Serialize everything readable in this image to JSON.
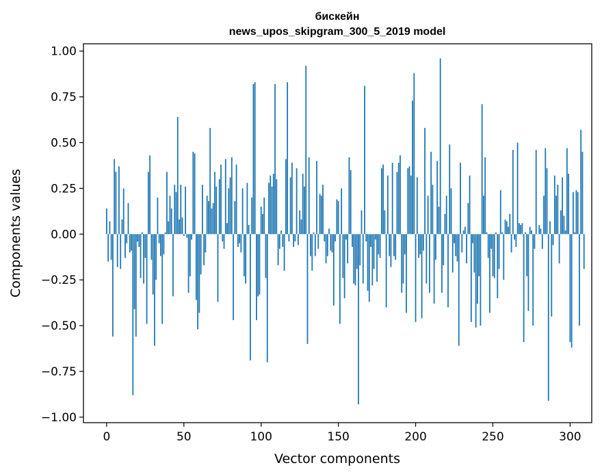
{
  "chart_data": {
    "type": "bar",
    "title_line1": "бискейн",
    "title_line2": "news_upos_skipgram_300_5_2019 model",
    "xlabel": "Vector components",
    "ylabel": "Components values",
    "xlim": [
      -15,
      314
    ],
    "ylim": [
      -1.03,
      1.04
    ],
    "xticks": [
      0,
      50,
      100,
      150,
      200,
      250,
      300
    ],
    "yticks": [
      1.0,
      0.75,
      0.5,
      0.25,
      0.0,
      -0.25,
      -0.5,
      -0.75,
      -1.0
    ],
    "ytick_labels": [
      "1.00",
      "0.75",
      "0.50",
      "0.25",
      "0.00",
      "−0.25",
      "−0.50",
      "−0.75",
      "−1.00"
    ],
    "grid": false,
    "bar_color": "#1f77b4",
    "values": [
      0.14,
      -0.15,
      0.07,
      -0.14,
      -0.56,
      0.41,
      0.34,
      -0.18,
      0.37,
      -0.19,
      0.08,
      0.25,
      -0.13,
      -0.05,
      0.17,
      -0.1,
      -0.09,
      -0.88,
      -0.41,
      -0.56,
      -0.04,
      -0.07,
      -0.24,
      0.01,
      -0.27,
      -0.13,
      -0.49,
      0.34,
      0.43,
      -0.14,
      -0.33,
      -0.61,
      -0.25,
      0.2,
      -0.05,
      -0.12,
      -0.49,
      -0.11,
      0.01,
      0.34,
      0.07,
      0.21,
      0.14,
      -0.34,
      0.27,
      0.23,
      0.64,
      0.08,
      0.27,
      0.09,
      -0.01,
      0.26,
      -0.02,
      -0.32,
      -0.23,
      -0.03,
      0.45,
      0.44,
      -0.36,
      -0.52,
      -0.43,
      -0.22,
      0.27,
      -0.17,
      -0.1,
      0.21,
      0.18,
      0.58,
      0.14,
      0.17,
      0.34,
      0.26,
      -0.37,
      0.3,
      0.38,
      -0.04,
      -0.08,
      0.41,
      0.06,
      0.25,
      0.31,
      0.42,
      -0.47,
      0.18,
      0.38,
      -0.07,
      -0.05,
      -0.1,
      0.25,
      -0.23,
      -0.27,
      0.28,
      0.05,
      -0.69,
      0.2,
      0.82,
      0.83,
      -0.47,
      -0.34,
      -0.33,
      0.15,
      0.11,
      0.2,
      -0.24,
      -0.7,
      0.28,
      0.32,
      0.26,
      0.33,
      0.82,
      0.3,
      -0.17,
      -0.08,
      0.02,
      -0.07,
      -0.2,
      0.41,
      0.83,
      -0.04,
      0.31,
      0.39,
      -0.07,
      -0.04,
      0.36,
      -0.06,
      0.13,
      0.08,
      0.33,
      0.26,
      0.92,
      -0.6,
      0.42,
      -0.12,
      -0.2,
      0.01,
      -0.12,
      0.4,
      -0.08,
      0.22,
      0.21,
      0.27,
      -0.04,
      -0.16,
      -0.12,
      0.03,
      -0.09,
      -0.1,
      -0.39,
      -0.04,
      0.19,
      0.18,
      -0.49,
      0.25,
      -0.24,
      -0.35,
      -0.03,
      -0.16,
      0.42,
      0.35,
      -0.07,
      -0.27,
      -0.28,
      -0.19,
      -0.93,
      -0.17,
      0.13,
      -0.27,
      0.81,
      -0.04,
      -0.31,
      -0.37,
      -0.07,
      -0.28,
      -0.19,
      -0.03,
      -0.26,
      -0.11,
      -0.13,
      0.36,
      0.38,
      0.13,
      -0.4,
      0.32,
      -0.12,
      -0.18,
      0.39,
      -0.12,
      -0.14,
      0.34,
      0.39,
      0.43,
      -0.32,
      -0.27,
      -0.11,
      -0.43,
      0.36,
      0.37,
      0.32,
      0.73,
      0.88,
      -0.48,
      0.31,
      -0.13,
      -0.11,
      -0.46,
      -0.09,
      0.58,
      -0.27,
      0.21,
      -0.32,
      0.45,
      0.27,
      -0.38,
      -0.14,
      0.4,
      0.15,
      0.96,
      -0.32,
      -0.17,
      0.11,
      0.21,
      -0.4,
      0.49,
      0.25,
      -0.21,
      -0.05,
      -0.12,
      -0.15,
      -0.61,
      0.39,
      -0.1,
      0.02,
      0.04,
      -0.16,
      0.17,
      0.32,
      -0.48,
      -0.05,
      -0.21,
      -0.51,
      -0.38,
      -0.23,
      -0.5,
      0.71,
      0.21,
      0.42,
      0.01,
      -0.13,
      -0.43,
      -0.08,
      -0.23,
      -0.24,
      0.01,
      -0.35,
      -0.19,
      0.24,
      0.01,
      -0.25,
      0.08,
      0.07,
      0.04,
      0.11,
      -0.1,
      0.46,
      -0.03,
      -0.07,
      0.5,
      0.06,
      0.05,
      0.06,
      -0.59,
      0.01,
      -0.23,
      -0.42,
      0.04,
      0.02,
      -0.5,
      -0.08,
      0.46,
      0.0,
      0.05,
      0.03,
      -0.08,
      0.21,
      0.47,
      0.36,
      -0.91,
      0.07,
      -0.45,
      -0.06,
      0.32,
      0.21,
      0.27,
      -0.16,
      0.13,
      0.31,
      0.1,
      0.02,
      0.47,
      0.33,
      -0.59,
      -0.62,
      0.23,
      0.01,
      0.24,
      0.23,
      -0.5,
      0.57,
      0.45,
      -0.19
    ]
  }
}
